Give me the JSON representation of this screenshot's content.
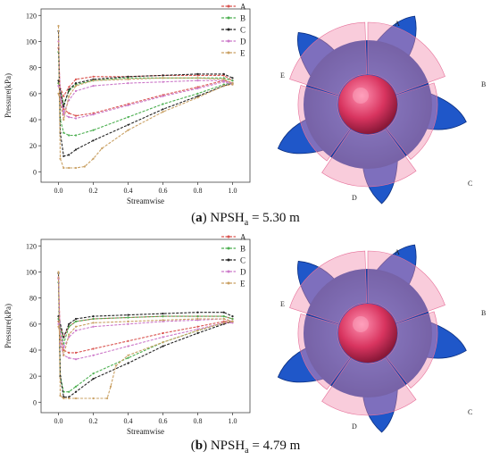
{
  "colors": {
    "A": "#d9534f",
    "B": "#4caf50",
    "C": "#222222",
    "D": "#cc79c9",
    "E": "#c9a063"
  },
  "panels": [
    {
      "caption": {
        "letter": "a",
        "text": "NPSH",
        "sub": "a",
        "value": " = 5.30 m"
      },
      "render_labels": [
        "A",
        "B",
        "C",
        "D",
        "E"
      ],
      "chart_data": {
        "type": "line",
        "xlabel": "Streamwise",
        "ylabel": "Pressure(kPa)",
        "xlim": [
          -0.1,
          1.1
        ],
        "ylim": [
          -8,
          125
        ],
        "xticks": [
          "0.0",
          "0.2",
          "0.4",
          "0.6",
          "0.8",
          "1.0"
        ],
        "yticks": [
          "0",
          "20",
          "40",
          "60",
          "80",
          "100",
          "120"
        ],
        "legend_position": "top-right",
        "series": [
          {
            "name": "A",
            "color_key": "A",
            "upper": [
              [
                0,
                68
              ],
              [
                0.03,
                58
              ],
              [
                0.06,
                65
              ],
              [
                0.1,
                71
              ],
              [
                0.2,
                73
              ],
              [
                0.4,
                73
              ],
              [
                0.6,
                74
              ],
              [
                0.8,
                74
              ],
              [
                0.95,
                74
              ],
              [
                1.0,
                70
              ]
            ],
            "lower": [
              [
                0,
                95
              ],
              [
                0.01,
                60
              ],
              [
                0.03,
                48
              ],
              [
                0.06,
                45
              ],
              [
                0.1,
                43
              ],
              [
                0.2,
                45
              ],
              [
                0.4,
                52
              ],
              [
                0.6,
                59
              ],
              [
                0.8,
                65
              ],
              [
                0.95,
                70
              ],
              [
                1.0,
                68
              ]
            ]
          },
          {
            "name": "B",
            "color_key": "B",
            "upper": [
              [
                0,
                68
              ],
              [
                0.03,
                52
              ],
              [
                0.06,
                62
              ],
              [
                0.1,
                67
              ],
              [
                0.2,
                70
              ],
              [
                0.4,
                72
              ],
              [
                0.6,
                72
              ],
              [
                0.8,
                72
              ],
              [
                0.95,
                72
              ],
              [
                1.0,
                70
              ]
            ],
            "lower": [
              [
                0,
                92
              ],
              [
                0.01,
                40
              ],
              [
                0.03,
                30
              ],
              [
                0.06,
                28
              ],
              [
                0.1,
                28
              ],
              [
                0.2,
                32
              ],
              [
                0.4,
                42
              ],
              [
                0.6,
                52
              ],
              [
                0.8,
                60
              ],
              [
                0.95,
                67
              ],
              [
                1.0,
                68
              ]
            ]
          },
          {
            "name": "C",
            "color_key": "C",
            "upper": [
              [
                0,
                70
              ],
              [
                0.03,
                50
              ],
              [
                0.06,
                63
              ],
              [
                0.1,
                68
              ],
              [
                0.2,
                71
              ],
              [
                0.4,
                73
              ],
              [
                0.6,
                74
              ],
              [
                0.8,
                75
              ],
              [
                0.95,
                75
              ],
              [
                1.0,
                72
              ]
            ],
            "lower": [
              [
                0,
                108
              ],
              [
                0.01,
                30
              ],
              [
                0.03,
                12
              ],
              [
                0.06,
                13
              ],
              [
                0.1,
                17
              ],
              [
                0.2,
                24
              ],
              [
                0.4,
                36
              ],
              [
                0.6,
                48
              ],
              [
                0.8,
                58
              ],
              [
                0.95,
                66
              ],
              [
                1.0,
                68
              ]
            ]
          },
          {
            "name": "D",
            "color_key": "D",
            "upper": [
              [
                0,
                66
              ],
              [
                0.03,
                45
              ],
              [
                0.06,
                55
              ],
              [
                0.1,
                62
              ],
              [
                0.2,
                66
              ],
              [
                0.4,
                68
              ],
              [
                0.6,
                69
              ],
              [
                0.8,
                70
              ],
              [
                0.95,
                70
              ],
              [
                1.0,
                68
              ]
            ],
            "lower": [
              [
                0,
                100
              ],
              [
                0.01,
                55
              ],
              [
                0.03,
                44
              ],
              [
                0.06,
                42
              ],
              [
                0.1,
                41
              ],
              [
                0.2,
                44
              ],
              [
                0.4,
                51
              ],
              [
                0.6,
                58
              ],
              [
                0.8,
                64
              ],
              [
                0.95,
                69
              ],
              [
                1.0,
                67
              ]
            ]
          },
          {
            "name": "E",
            "color_key": "E",
            "upper": [
              [
                0,
                60
              ],
              [
                0.03,
                40
              ],
              [
                0.06,
                58
              ],
              [
                0.1,
                66
              ],
              [
                0.2,
                70
              ],
              [
                0.4,
                71
              ],
              [
                0.6,
                72
              ],
              [
                0.8,
                72
              ],
              [
                0.95,
                71
              ],
              [
                1.0,
                68
              ]
            ],
            "lower": [
              [
                0,
                112
              ],
              [
                0.01,
                10
              ],
              [
                0.03,
                3
              ],
              [
                0.06,
                3
              ],
              [
                0.1,
                3
              ],
              [
                0.15,
                4
              ],
              [
                0.2,
                10
              ],
              [
                0.25,
                18
              ],
              [
                0.4,
                32
              ],
              [
                0.6,
                46
              ],
              [
                0.8,
                57
              ],
              [
                0.95,
                66
              ],
              [
                1.0,
                67
              ]
            ]
          }
        ]
      }
    },
    {
      "caption": {
        "letter": "b",
        "text": "NPSH",
        "sub": "a",
        "value": " = 4.79 m"
      },
      "render_labels": [
        "A",
        "B",
        "C",
        "D",
        "E"
      ],
      "chart_data": {
        "type": "line",
        "xlabel": "Streamwise",
        "ylabel": "Pressure(kPa)",
        "xlim": [
          -0.1,
          1.1
        ],
        "ylim": [
          -8,
          125
        ],
        "xticks": [
          "0.0",
          "0.2",
          "0.4",
          "0.6",
          "0.8",
          "1.0"
        ],
        "yticks": [
          "0",
          "20",
          "40",
          "60",
          "80",
          "100",
          "120"
        ],
        "legend_position": "top-right",
        "series": [
          {
            "name": "A",
            "color_key": "A",
            "upper": [
              [
                0,
                62
              ],
              [
                0.03,
                50
              ],
              [
                0.06,
                58
              ],
              [
                0.1,
                62
              ],
              [
                0.2,
                64
              ],
              [
                0.4,
                65
              ],
              [
                0.6,
                66
              ],
              [
                0.8,
                66
              ],
              [
                0.95,
                66
              ],
              [
                1.0,
                64
              ]
            ],
            "lower": [
              [
                0,
                95
              ],
              [
                0.01,
                50
              ],
              [
                0.03,
                40
              ],
              [
                0.06,
                38
              ],
              [
                0.1,
                38
              ],
              [
                0.2,
                41
              ],
              [
                0.4,
                47
              ],
              [
                0.6,
                53
              ],
              [
                0.8,
                58
              ],
              [
                0.95,
                62
              ],
              [
                1.0,
                62
              ]
            ]
          },
          {
            "name": "B",
            "color_key": "B",
            "upper": [
              [
                0,
                64
              ],
              [
                0.03,
                45
              ],
              [
                0.06,
                58
              ],
              [
                0.1,
                62
              ],
              [
                0.2,
                64
              ],
              [
                0.4,
                65
              ],
              [
                0.6,
                66
              ],
              [
                0.8,
                66
              ],
              [
                0.95,
                66
              ],
              [
                1.0,
                64
              ]
            ],
            "lower": [
              [
                0,
                92
              ],
              [
                0.01,
                20
              ],
              [
                0.03,
                8
              ],
              [
                0.06,
                8
              ],
              [
                0.1,
                12
              ],
              [
                0.2,
                22
              ],
              [
                0.4,
                34
              ],
              [
                0.6,
                46
              ],
              [
                0.8,
                55
              ],
              [
                0.95,
                61
              ],
              [
                1.0,
                62
              ]
            ]
          },
          {
            "name": "C",
            "color_key": "C",
            "upper": [
              [
                0,
                66
              ],
              [
                0.03,
                50
              ],
              [
                0.06,
                60
              ],
              [
                0.1,
                64
              ],
              [
                0.2,
                66
              ],
              [
                0.4,
                67
              ],
              [
                0.6,
                68
              ],
              [
                0.8,
                69
              ],
              [
                0.95,
                69
              ],
              [
                1.0,
                66
              ]
            ],
            "lower": [
              [
                0,
                99
              ],
              [
                0.01,
                20
              ],
              [
                0.03,
                4
              ],
              [
                0.06,
                4
              ],
              [
                0.1,
                8
              ],
              [
                0.2,
                18
              ],
              [
                0.4,
                30
              ],
              [
                0.6,
                43
              ],
              [
                0.8,
                53
              ],
              [
                0.95,
                60
              ],
              [
                1.0,
                62
              ]
            ]
          },
          {
            "name": "D",
            "color_key": "D",
            "upper": [
              [
                0,
                60
              ],
              [
                0.03,
                42
              ],
              [
                0.06,
                50
              ],
              [
                0.1,
                55
              ],
              [
                0.2,
                58
              ],
              [
                0.4,
                60
              ],
              [
                0.6,
                62
              ],
              [
                0.8,
                63
              ],
              [
                0.95,
                64
              ],
              [
                1.0,
                62
              ]
            ],
            "lower": [
              [
                0,
                96
              ],
              [
                0.01,
                45
              ],
              [
                0.03,
                36
              ],
              [
                0.06,
                34
              ],
              [
                0.1,
                33
              ],
              [
                0.2,
                36
              ],
              [
                0.4,
                43
              ],
              [
                0.6,
                50
              ],
              [
                0.8,
                56
              ],
              [
                0.95,
                61
              ],
              [
                1.0,
                61
              ]
            ]
          },
          {
            "name": "E",
            "color_key": "E",
            "upper": [
              [
                0,
                58
              ],
              [
                0.03,
                36
              ],
              [
                0.06,
                52
              ],
              [
                0.1,
                58
              ],
              [
                0.2,
                61
              ],
              [
                0.4,
                62
              ],
              [
                0.6,
                63
              ],
              [
                0.8,
                64
              ],
              [
                0.95,
                64
              ],
              [
                1.0,
                62
              ]
            ],
            "lower": [
              [
                0,
                100
              ],
              [
                0.01,
                5
              ],
              [
                0.03,
                3
              ],
              [
                0.06,
                3
              ],
              [
                0.1,
                3
              ],
              [
                0.2,
                3
              ],
              [
                0.28,
                3
              ],
              [
                0.3,
                12
              ],
              [
                0.33,
                28
              ],
              [
                0.4,
                36
              ],
              [
                0.6,
                46
              ],
              [
                0.8,
                55
              ],
              [
                0.95,
                61
              ],
              [
                1.0,
                62
              ]
            ]
          }
        ]
      }
    }
  ]
}
